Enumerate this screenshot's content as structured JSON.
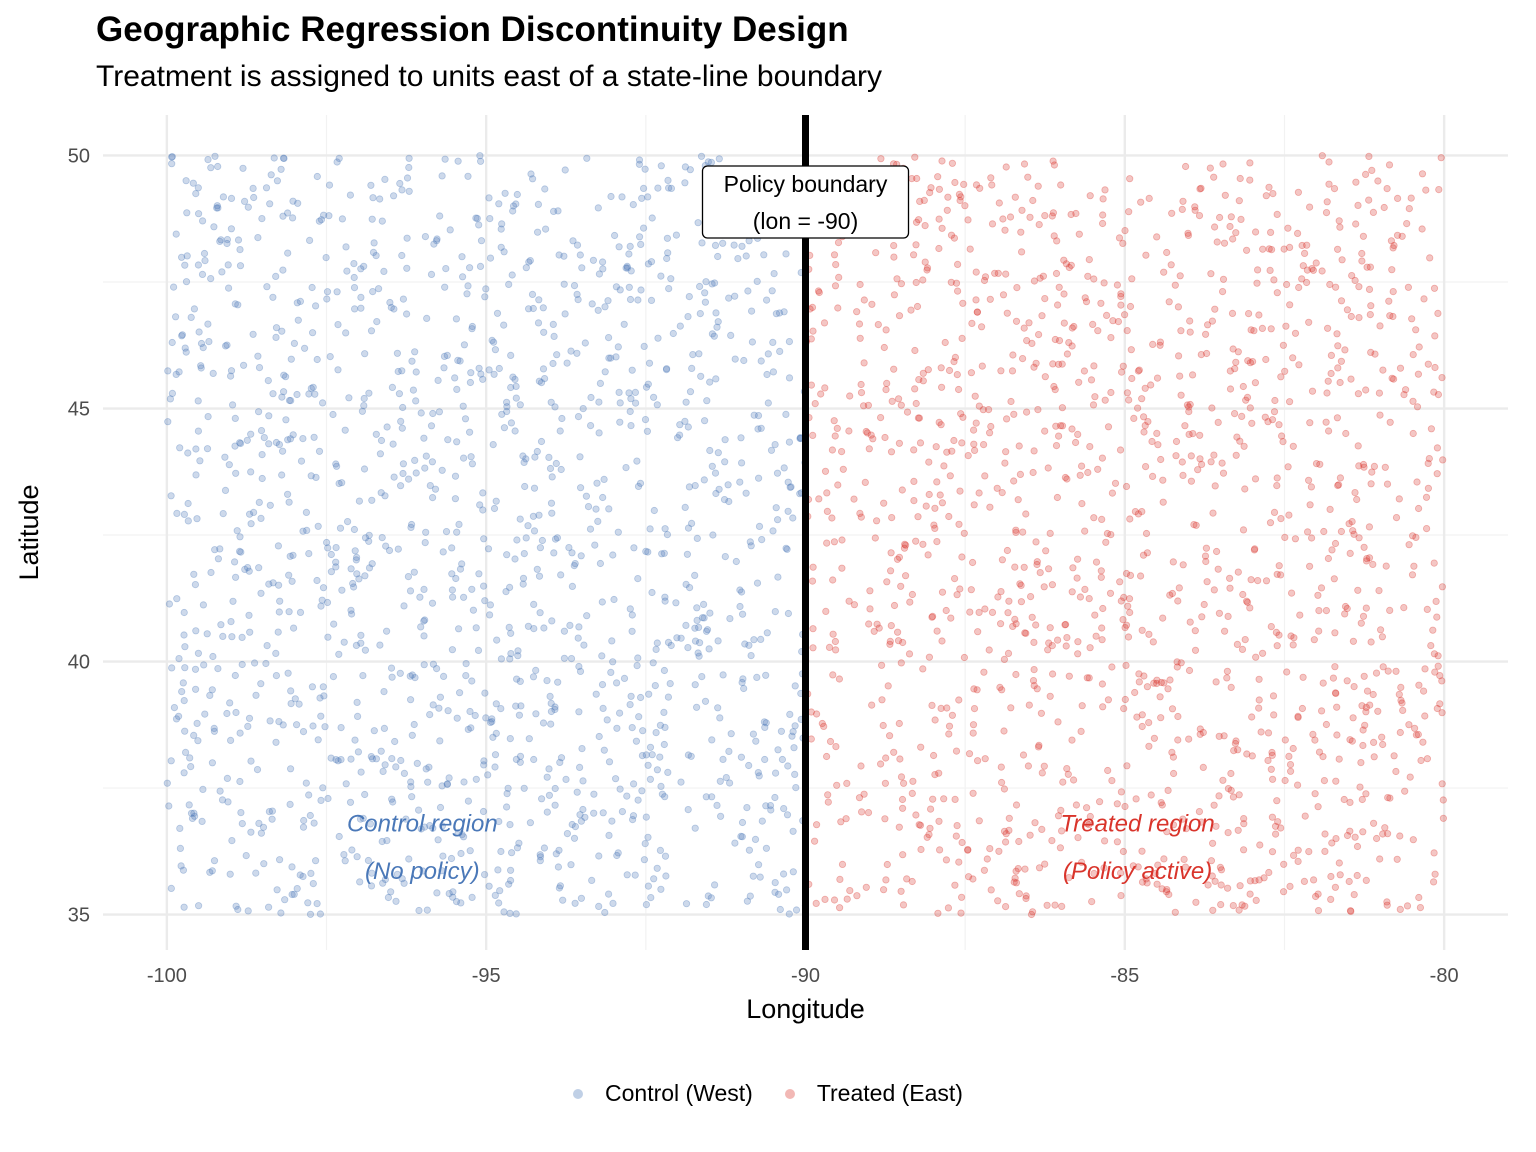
{
  "chart_data": {
    "type": "scatter",
    "title": "Geographic Regression Discontinuity Design",
    "subtitle": "Treatment is assigned to units east of a state-line boundary",
    "xlabel": "Longitude",
    "ylabel": "Latitude",
    "xlim": [
      -101,
      -79
    ],
    "ylim": [
      34.3,
      50.8
    ],
    "x_ticks": [
      -100,
      -95,
      -90,
      -85,
      -80
    ],
    "y_ticks": [
      35,
      40,
      45,
      50
    ],
    "x_tick_labels": [
      "-100",
      "-95",
      "-90",
      "-85",
      "-80"
    ],
    "y_tick_labels": [
      "35",
      "40",
      "45",
      "50"
    ],
    "cutoff": -90,
    "series": [
      {
        "name": "Control (West)",
        "color": "#4a78b8",
        "x_range": [
          -100,
          -90
        ],
        "y_range": [
          35,
          50
        ],
        "n": 1500,
        "seed": 7
      },
      {
        "name": "Treated (East)",
        "color": "#d9342b",
        "x_range": [
          -90,
          -80
        ],
        "y_range": [
          35,
          50
        ],
        "n": 1500,
        "seed": 19
      }
    ],
    "boundary_label": {
      "line1": "Policy boundary",
      "line2": "(lon = -90)"
    },
    "annotations": [
      {
        "line1": "Control region",
        "line2": "(No policy)",
        "color": "#4a78b8",
        "x": -96,
        "y1": 36.8,
        "y2": 36.0
      },
      {
        "line1": "Treated region",
        "line2": "(Policy active)",
        "color": "#d9342b",
        "x": -84.8,
        "y1": 36.8,
        "y2": 36.0
      }
    ],
    "legend": {
      "position": "bottom"
    }
  }
}
